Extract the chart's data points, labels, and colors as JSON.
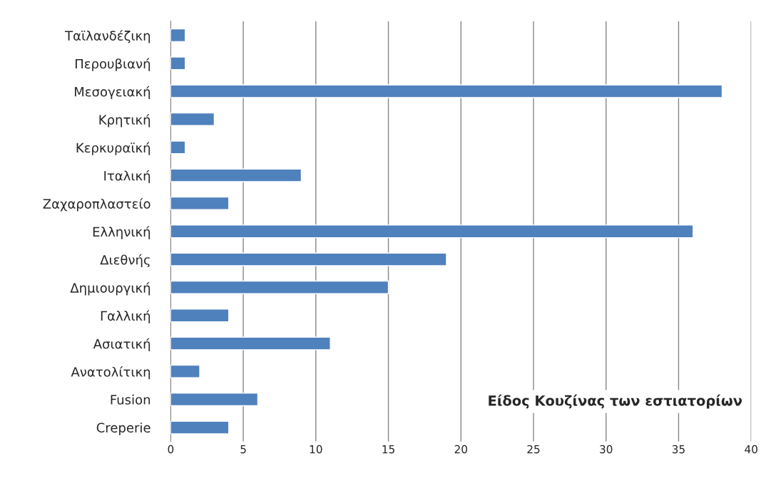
{
  "chart_data": {
    "type": "bar",
    "orientation": "horizontal",
    "title": "Είδος Κουζίνας των εστιατορίων",
    "categories": [
      "Ταϊλανδέζικη",
      "Περουβιανή",
      "Μεσογειακή",
      "Κρητική",
      "Κερκυραϊκή",
      "Ιταλική",
      "Ζαχαροπλαστείο",
      "Ελληνική",
      "Διεθνής",
      "Δημιουργική",
      "Γαλλική",
      "Ασιατική",
      "Ανατολίτικη",
      "Fusion",
      "Creperie"
    ],
    "values": [
      1,
      1,
      38,
      3,
      1,
      9,
      4,
      36,
      19,
      15,
      4,
      11,
      2,
      6,
      4
    ],
    "color": "#4f81bd",
    "xlim": [
      0,
      40
    ],
    "xticks": [
      0,
      5,
      10,
      15,
      20,
      25,
      30,
      35,
      40
    ],
    "grid": "x",
    "legend": false
  }
}
